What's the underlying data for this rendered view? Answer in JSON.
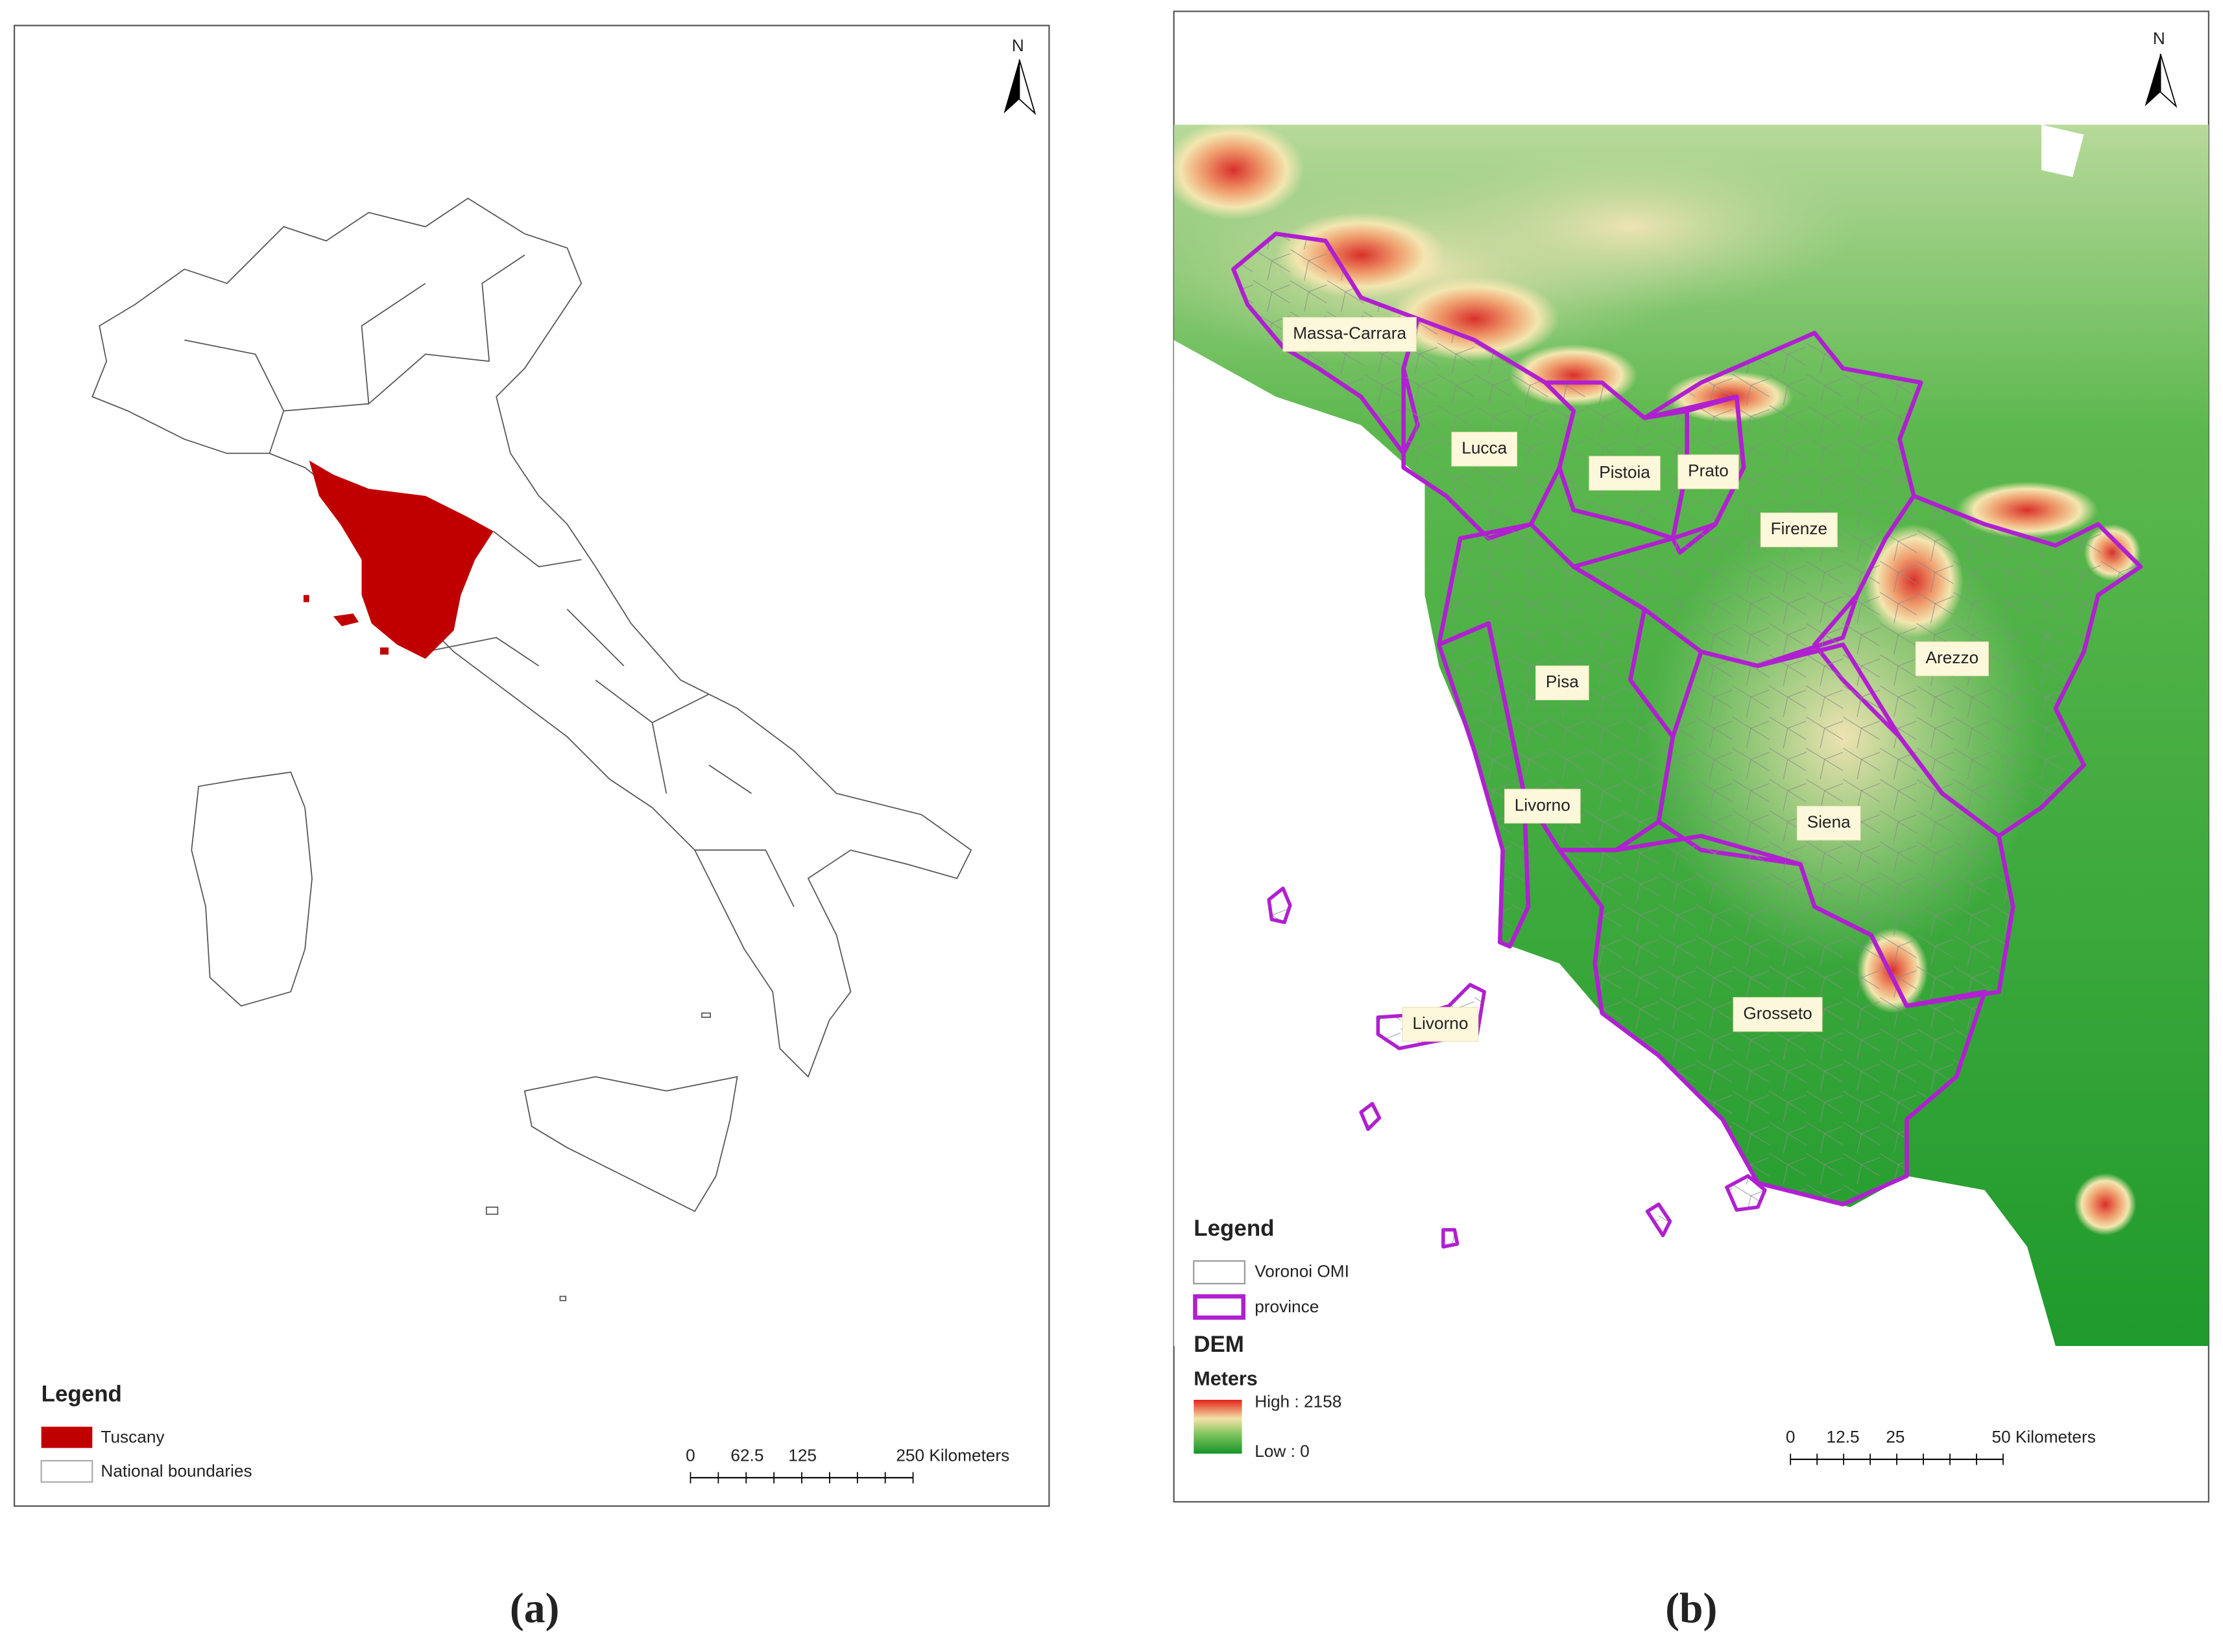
{
  "panel_a": {
    "caption": "(a)",
    "north": "N",
    "legend": {
      "title": "Legend",
      "items": [
        "Tuscany",
        "National boundaries"
      ]
    },
    "scale_bar": {
      "labels": [
        "0",
        "62.5",
        "125",
        "250 Kilometers"
      ]
    }
  },
  "panel_b": {
    "caption": "(b)",
    "north": "N",
    "provinces": [
      "Massa-Carrara",
      "Lucca",
      "Pistoia",
      "Prato",
      "Firenze",
      "Arezzo",
      "Pisa",
      "Livorno",
      "Siena",
      "Grosseto",
      "Livorno"
    ],
    "legend": {
      "title": "Legend",
      "items": [
        "Voronoi OMI",
        "province"
      ],
      "dem_title": "DEM",
      "units": "Meters",
      "high": "High : 2158",
      "low": "Low : 0"
    },
    "scale_bar": {
      "labels": [
        "0",
        "12.5",
        "25",
        "50 Kilometers"
      ]
    }
  }
}
